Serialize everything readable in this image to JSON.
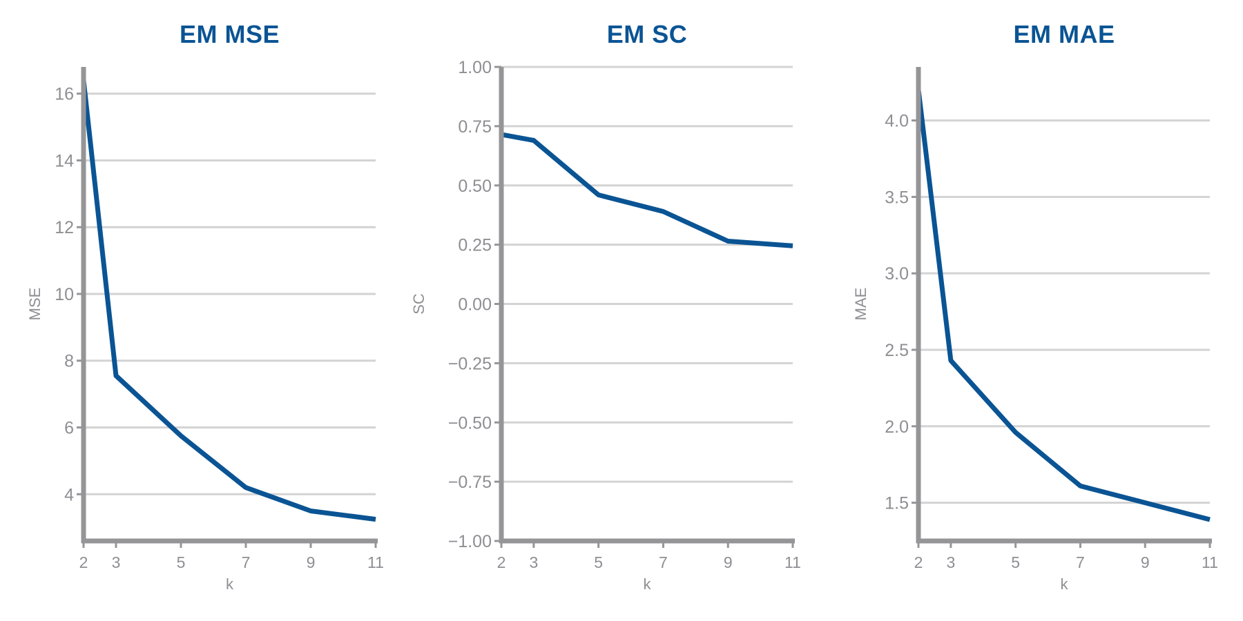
{
  "colors": {
    "series": "#0a5494",
    "title": "#0a5494",
    "axis": "#959598",
    "grid": "#d3d3d3",
    "tick_text": "#8e8e93"
  },
  "chart_data": [
    {
      "type": "line",
      "title": "EM MSE",
      "xlabel": "k",
      "ylabel": "MSE",
      "x": [
        2,
        3,
        5,
        7,
        9,
        11
      ],
      "xticks": [
        2,
        3,
        5,
        7,
        9,
        11
      ],
      "xlim": [
        2,
        11
      ],
      "yticks": [
        4,
        6,
        8,
        10,
        12,
        14,
        16
      ],
      "ytick_labels": [
        "4",
        "6",
        "8",
        "10",
        "12",
        "14",
        "16"
      ],
      "ylim": [
        2.6,
        16.8
      ],
      "grid": true,
      "series": [
        {
          "values": [
            16.4,
            7.55,
            5.75,
            4.2,
            3.5,
            3.25
          ]
        }
      ]
    },
    {
      "type": "line",
      "title": "EM SC",
      "xlabel": "k",
      "ylabel": "SC",
      "x": [
        2,
        3,
        5,
        7,
        9,
        11
      ],
      "xticks": [
        2,
        3,
        5,
        7,
        9,
        11
      ],
      "xlim": [
        2,
        11
      ],
      "yticks": [
        -1.0,
        -0.75,
        -0.5,
        -0.25,
        0.0,
        0.25,
        0.5,
        0.75,
        1.0
      ],
      "ytick_labels": [
        "−1.00",
        "−0.75",
        "−0.50",
        "−0.25",
        "0.00",
        "0.25",
        "0.50",
        "0.75",
        "1.00"
      ],
      "ylim": [
        -1.0,
        1.0
      ],
      "grid": true,
      "series": [
        {
          "values": [
            0.715,
            0.69,
            0.46,
            0.39,
            0.265,
            0.245
          ]
        }
      ]
    },
    {
      "type": "line",
      "title": "EM MAE",
      "xlabel": "k",
      "ylabel": "MAE",
      "x": [
        2,
        3,
        5,
        7,
        9,
        11
      ],
      "xticks": [
        2,
        3,
        5,
        7,
        9,
        11
      ],
      "xlim": [
        2,
        11
      ],
      "yticks": [
        1.5,
        2.0,
        2.5,
        3.0,
        3.5,
        4.0
      ],
      "ytick_labels": [
        "1.5",
        "2.0",
        "2.5",
        "3.0",
        "3.5",
        "4.0"
      ],
      "ylim": [
        1.25,
        4.35
      ],
      "grid": true,
      "series": [
        {
          "values": [
            4.2,
            2.43,
            1.96,
            1.61,
            1.5,
            1.39
          ]
        }
      ]
    }
  ]
}
